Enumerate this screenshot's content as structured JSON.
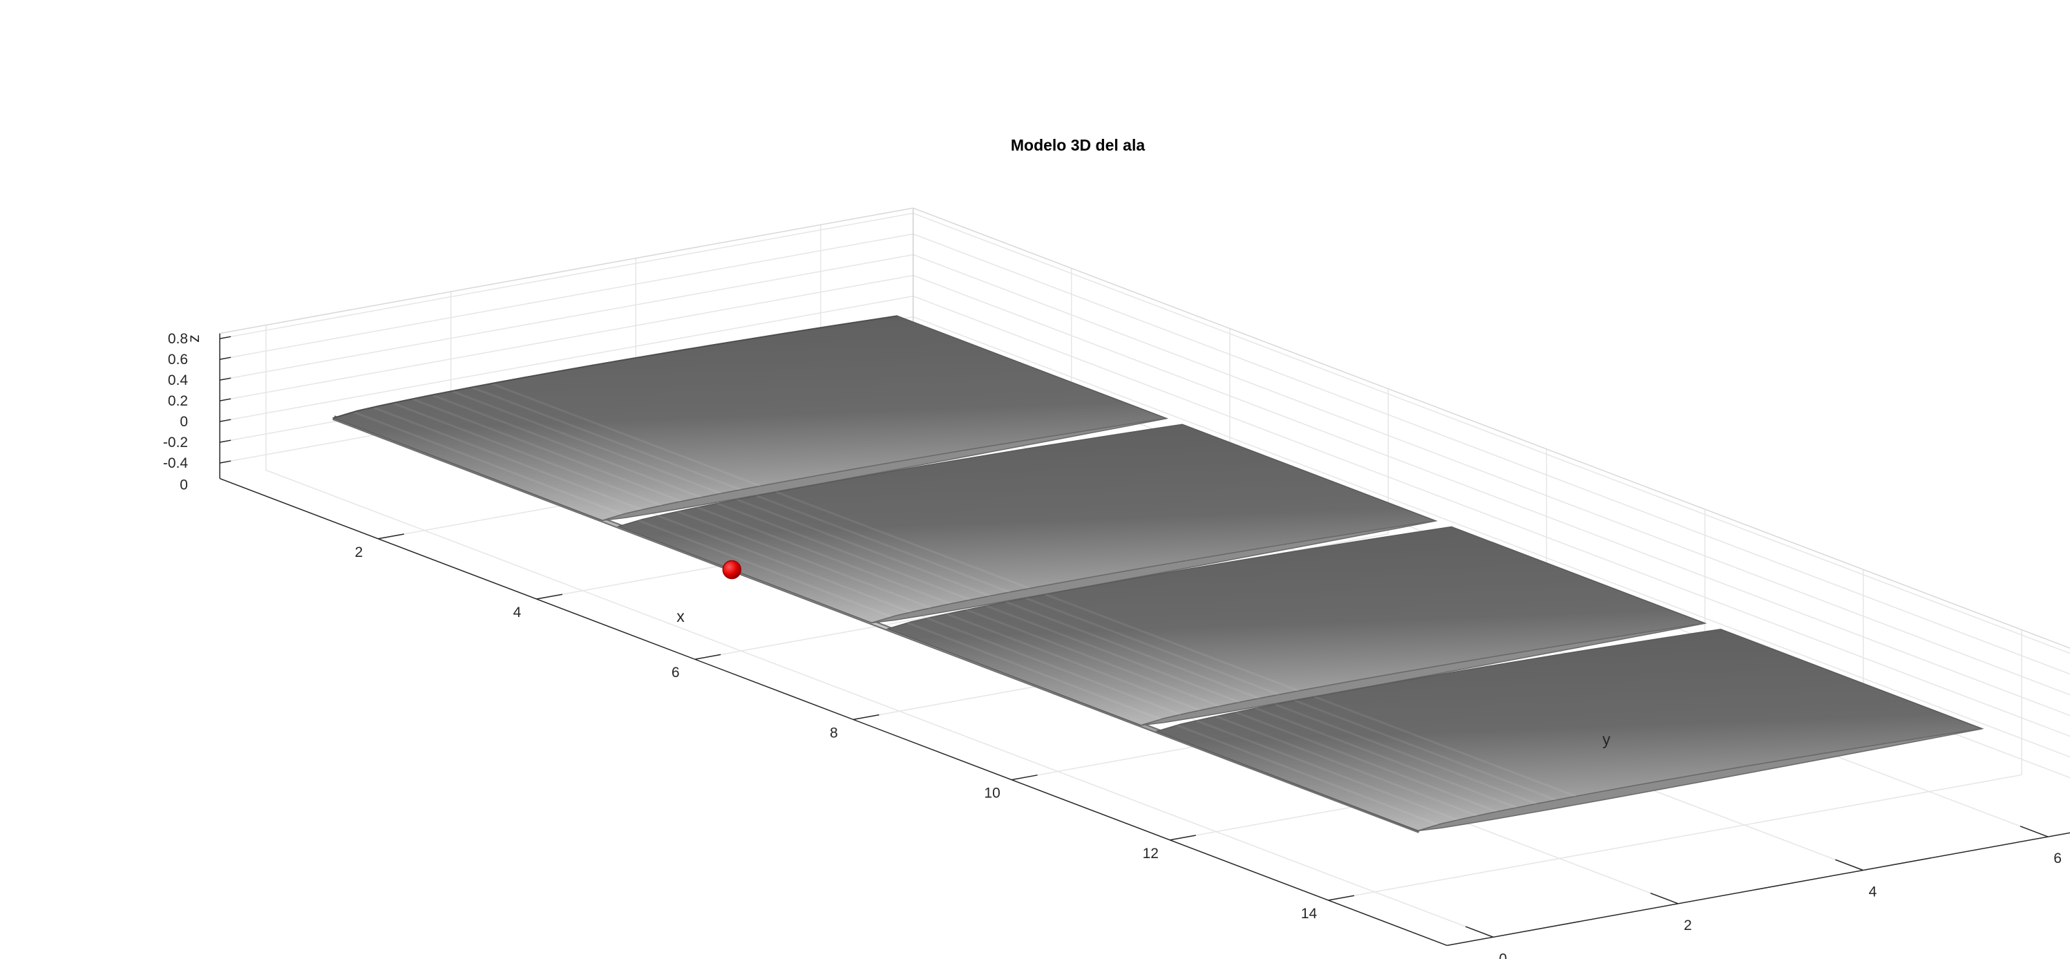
{
  "chart_data": {
    "type": "surface3d",
    "title": "Modelo 3D del ala",
    "xlabel": "x",
    "ylabel": "y",
    "zlabel": "z",
    "x_ticks": [
      "2",
      "4",
      "6",
      "8",
      "10",
      "12",
      "14"
    ],
    "y_ticks": [
      "0",
      "2",
      "4",
      "6"
    ],
    "z_ticks": [
      "-0.4",
      "-0.2",
      "0",
      "0.2",
      "0.4",
      "0.6",
      "0.8"
    ],
    "x_extra_tick": "0",
    "xlim": [
      0,
      15.5
    ],
    "ylim": [
      -0.5,
      7
    ],
    "zlim": [
      -0.55,
      0.85
    ],
    "grid": true,
    "surface": {
      "color": "#808080",
      "leading_edge_x": [
        0.5,
        14.2
      ],
      "chord_y": [
        0.3,
        6.4
      ],
      "sections_x_start": [
        0.5,
        4.1,
        7.5,
        10.9
      ],
      "sections_x_end": [
        3.9,
        7.3,
        10.7,
        14.2
      ]
    },
    "marker": {
      "x": 5.3,
      "y": 0.5,
      "z": -0.05,
      "color": "#e00000"
    }
  }
}
